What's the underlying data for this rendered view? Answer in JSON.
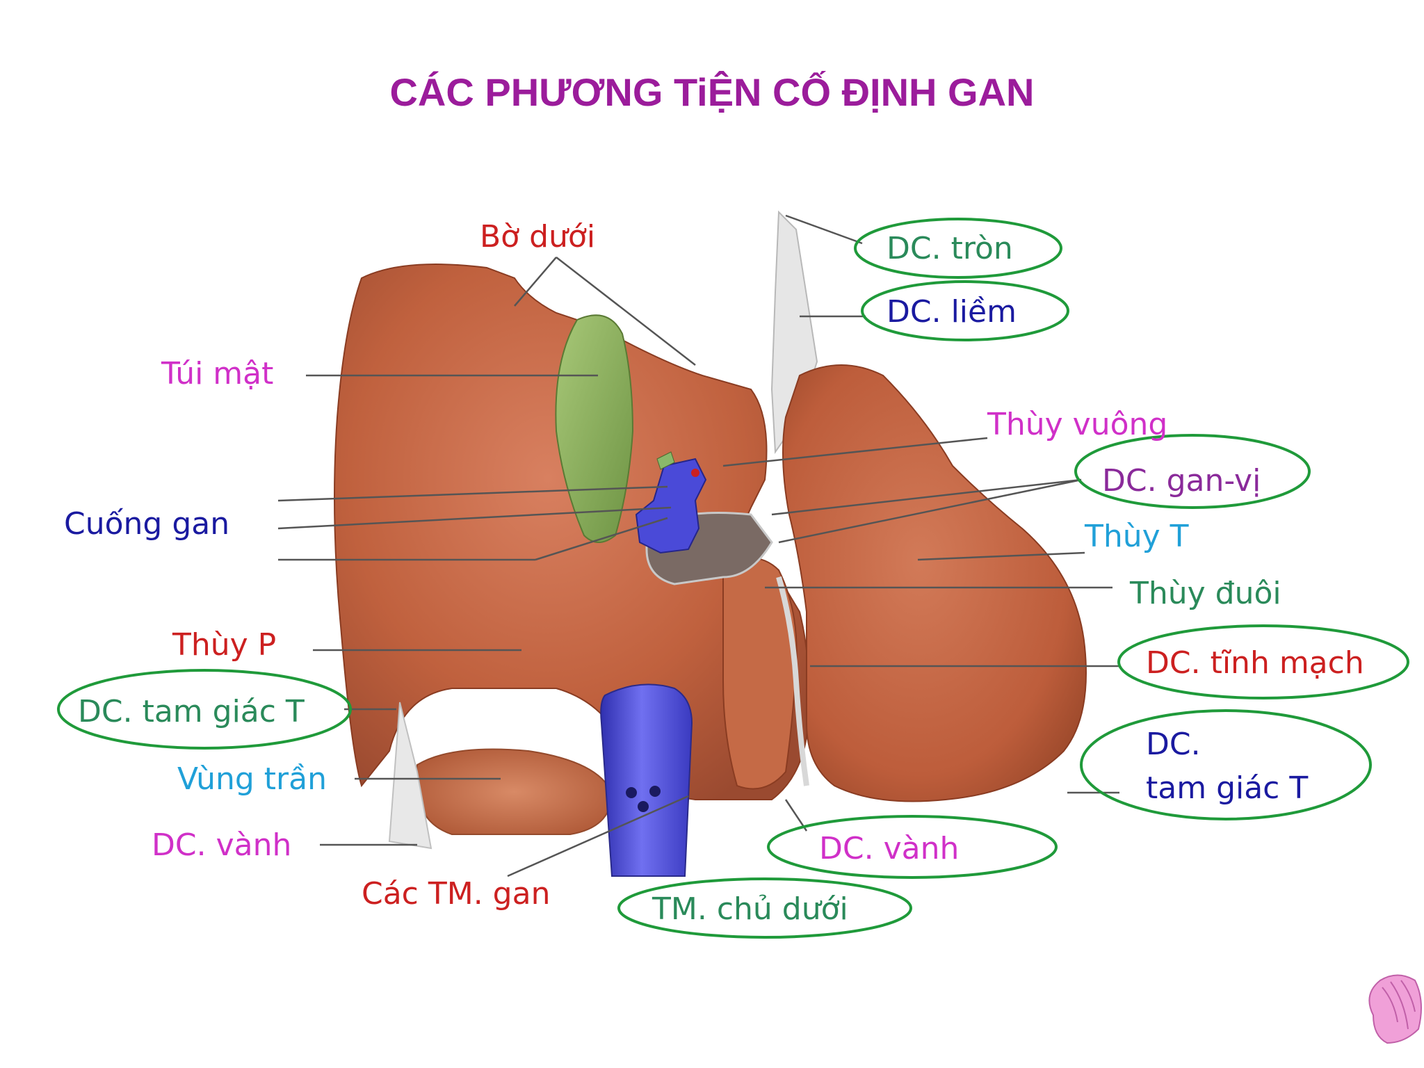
{
  "slide": {
    "title": "CÁC PHƯƠNG TiỆN CỐ ĐỊNH GAN"
  },
  "labels": {
    "bo_duoi": "Bờ dưới",
    "dc_tron": "DC. tròn",
    "dc_liem": "DC. liềm",
    "tui_mat": "Túi mật",
    "thuy_vuong": "Thùy vuông",
    "dc_gan_vi": "DC. gan-vị",
    "cuong_gan": "Cuống gan",
    "thuy_t": "Thùy T",
    "thuy_duoi": "Thùy đuôi",
    "thuy_p": "Thùy P",
    "dc_tinh_mach": "DC. tĩnh mạch",
    "dc_tam_giac_t_left": "DC. tam giác T",
    "dc_tam_giac_t_right_1": "DC.",
    "dc_tam_giac_t_right_2": "tam giác T",
    "vung_tran": "Vùng trần",
    "dc_vanh_left": "DC. vành",
    "cac_tm_gan": "Các TM. gan",
    "dc_vanh_right": "DC. vành",
    "tm_chu_duoi": "TM. chủ dưới"
  },
  "colors": {
    "title": "#9b1c9b",
    "red_label": "#cc2020",
    "magenta_label": "#d030c8",
    "blue_label": "#1a1aa0",
    "cyan_label": "#20a0d8",
    "green_label": "#2a8a5a",
    "purple_label": "#8a2a9a",
    "highlight_ellipse": "#1f9a3a",
    "liver": "#c0613e",
    "gallbladder": "#8aab5a",
    "vena_cava": "#5050d8"
  },
  "icons": {
    "corner_logo": "shell-logo-icon"
  }
}
